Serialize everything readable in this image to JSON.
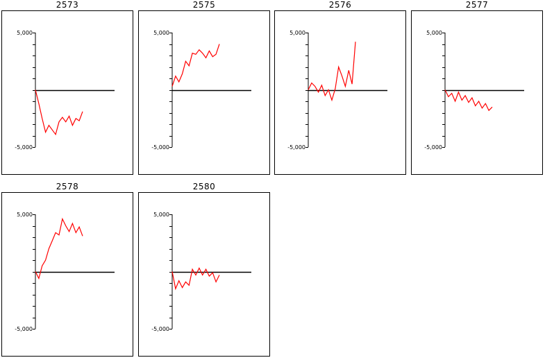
{
  "chart_data": [
    {
      "type": "line",
      "title": "2573",
      "ylim": [
        -5000,
        5000
      ],
      "y_tick_labels": [
        "5,000",
        "-5,000"
      ],
      "line_color": "#ff0000",
      "series": [
        {
          "x": [
            0,
            1,
            2,
            3,
            4,
            5,
            6,
            7,
            8,
            9,
            10,
            11,
            12,
            13,
            14
          ],
          "values": [
            0,
            -1200,
            -2500,
            -3700,
            -3100,
            -3500,
            -3900,
            -2800,
            -2400,
            -2800,
            -2300,
            -3100,
            -2500,
            -2700,
            -1900
          ]
        }
      ]
    },
    {
      "type": "line",
      "title": "2575",
      "ylim": [
        -5000,
        5000
      ],
      "y_tick_labels": [
        "5,000",
        "-5,000"
      ],
      "line_color": "#ff0000",
      "series": [
        {
          "x": [
            0,
            1,
            2,
            3,
            4,
            5,
            6,
            7,
            8,
            9,
            10,
            11,
            12,
            13,
            14
          ],
          "values": [
            300,
            1200,
            700,
            1400,
            2500,
            2100,
            3200,
            3100,
            3500,
            3200,
            2800,
            3400,
            2900,
            3100,
            4000
          ]
        }
      ]
    },
    {
      "type": "line",
      "title": "2576",
      "ylim": [
        -5000,
        5000
      ],
      "y_tick_labels": [
        "5,000",
        "-5,000"
      ],
      "line_color": "#ff0000",
      "series": [
        {
          "x": [
            0,
            1,
            2,
            3,
            4,
            5,
            6,
            7,
            8,
            9,
            10,
            11,
            12,
            13,
            14
          ],
          "values": [
            0,
            600,
            300,
            -200,
            400,
            -500,
            0,
            -900,
            100,
            2000,
            1200,
            300,
            1700,
            500,
            4200
          ]
        }
      ]
    },
    {
      "type": "line",
      "title": "2577",
      "ylim": [
        -5000,
        5000
      ],
      "y_tick_labels": [
        "5,000",
        "-5,000"
      ],
      "line_color": "#ff0000",
      "series": [
        {
          "x": [
            0,
            1,
            2,
            3,
            4,
            5,
            6,
            7,
            8,
            9,
            10,
            11,
            12,
            13,
            14
          ],
          "values": [
            0,
            -600,
            -300,
            -1000,
            -200,
            -900,
            -500,
            -1100,
            -700,
            -1400,
            -1000,
            -1600,
            -1200,
            -1800,
            -1500
          ]
        }
      ]
    },
    {
      "type": "line",
      "title": "2578",
      "ylim": [
        -5000,
        5000
      ],
      "y_tick_labels": [
        "5,000",
        "-5,000"
      ],
      "line_color": "#ff0000",
      "series": [
        {
          "x": [
            0,
            1,
            2,
            3,
            4,
            5,
            6,
            7,
            8,
            9,
            10,
            11,
            12,
            13,
            14
          ],
          "values": [
            0,
            -600,
            500,
            1000,
            2000,
            2700,
            3400,
            3200,
            4600,
            4000,
            3500,
            4200,
            3400,
            3900,
            3100
          ]
        }
      ]
    },
    {
      "type": "line",
      "title": "2580",
      "ylim": [
        -5000,
        5000
      ],
      "y_tick_labels": [
        "5,000",
        "-5,000"
      ],
      "line_color": "#ff0000",
      "series": [
        {
          "x": [
            0,
            1,
            2,
            3,
            4,
            5,
            6,
            7,
            8,
            9,
            10,
            11,
            12,
            13,
            14
          ],
          "values": [
            0,
            -1500,
            -800,
            -1400,
            -900,
            -1200,
            200,
            -300,
            300,
            -300,
            200,
            -400,
            -100,
            -900,
            -300
          ]
        }
      ]
    }
  ]
}
